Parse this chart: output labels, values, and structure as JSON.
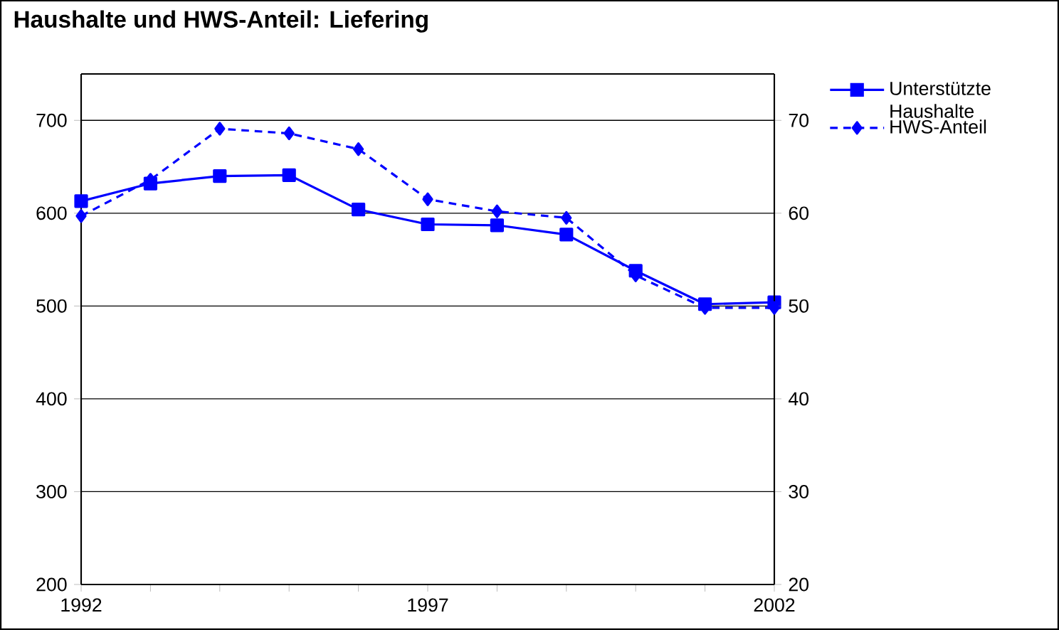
{
  "chart_data": {
    "type": "line",
    "title": "Haushalte und HWS-Anteil: Liefering",
    "x": [
      1992,
      1993,
      1994,
      1995,
      1996,
      1997,
      1998,
      1999,
      2000,
      2001,
      2002
    ],
    "series": [
      {
        "name": "Unterstützte Haushalte",
        "color": "#0000ff",
        "marker": "square",
        "line_style": "solid",
        "values": [
          613,
          632,
          640,
          641,
          604,
          588,
          587,
          577,
          538,
          502,
          504
        ]
      },
      {
        "name": "HWS-Anteil",
        "color": "#0000ff",
        "marker": "diamond",
        "line_style": "dashed",
        "axis": "y2",
        "values": [
          59.7,
          63.6,
          69.1,
          68.6,
          66.9,
          61.5,
          60.2,
          59.5,
          53.3,
          49.8,
          49.8
        ]
      }
    ],
    "xlim": [
      1992,
      2002
    ],
    "xticks": [
      1992,
      {
        "value": 1993,
        "label": null
      },
      {
        "value": 1994,
        "label": null
      },
      {
        "value": 1995,
        "label": null
      },
      {
        "value": 1996,
        "label": null
      },
      1997,
      {
        "value": 1998,
        "label": null
      },
      {
        "value": 1999,
        "label": null
      },
      {
        "value": 2000,
        "label": null
      },
      {
        "value": 2001,
        "label": null
      },
      2002
    ],
    "ylim": [
      200,
      750
    ],
    "yticks": [
      200,
      300,
      400,
      500,
      600,
      700
    ],
    "y2lim": [
      20,
      75
    ],
    "y2ticks": [
      20,
      30,
      40,
      50,
      60,
      70
    ],
    "grid": "y",
    "legend": "top right"
  }
}
